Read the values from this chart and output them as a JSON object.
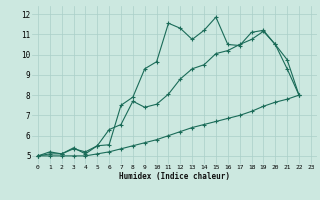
{
  "xlabel": "Humidex (Indice chaleur)",
  "background_color": "#cce8e0",
  "grid_color": "#aacfc8",
  "line_color": "#1a6b58",
  "x_values": [
    0,
    1,
    2,
    3,
    4,
    5,
    6,
    7,
    8,
    9,
    10,
    11,
    12,
    13,
    14,
    15,
    16,
    17,
    18,
    19,
    20,
    21,
    22,
    23
  ],
  "line1_y": [
    5.0,
    5.2,
    5.1,
    5.4,
    5.1,
    5.5,
    5.55,
    7.5,
    7.9,
    9.3,
    9.65,
    11.55,
    11.3,
    10.75,
    11.2,
    11.85,
    10.5,
    10.45,
    11.1,
    11.2,
    10.5,
    9.75,
    8.0,
    null
  ],
  "line2_y": [
    5.0,
    5.1,
    5.1,
    5.35,
    5.2,
    5.5,
    6.3,
    6.55,
    7.7,
    7.4,
    7.55,
    8.05,
    8.8,
    9.3,
    9.5,
    10.05,
    10.2,
    10.5,
    10.75,
    11.15,
    10.5,
    9.3,
    8.0,
    null
  ],
  "line3_y": [
    5.0,
    5.0,
    5.0,
    5.0,
    5.0,
    5.1,
    5.2,
    5.35,
    5.5,
    5.65,
    5.8,
    6.0,
    6.2,
    6.4,
    6.55,
    6.7,
    6.85,
    7.0,
    7.2,
    7.45,
    7.65,
    7.8,
    8.0,
    null
  ],
  "xlim": [
    -0.5,
    23.5
  ],
  "ylim": [
    4.6,
    12.4
  ],
  "yticks": [
    5,
    6,
    7,
    8,
    9,
    10,
    11,
    12
  ],
  "xticks": [
    0,
    1,
    2,
    3,
    4,
    5,
    6,
    7,
    8,
    9,
    10,
    11,
    12,
    13,
    14,
    15,
    16,
    17,
    18,
    19,
    20,
    21,
    22,
    23
  ]
}
